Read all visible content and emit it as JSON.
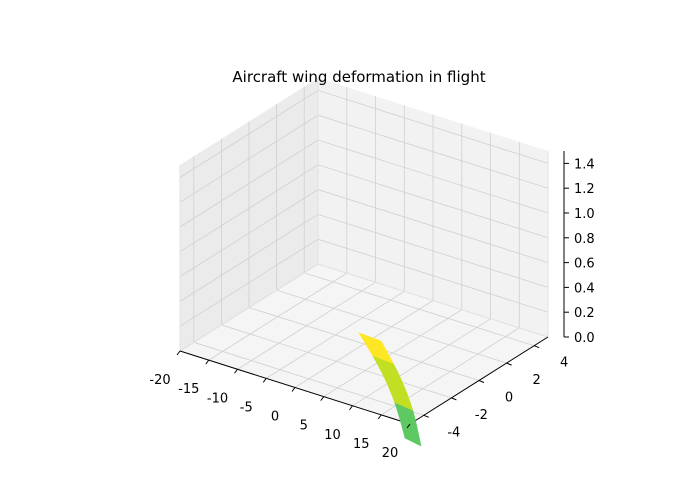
{
  "chart_data": {
    "type": "surface3d",
    "title": "Aircraft wing deformation in flight",
    "xlabel": "",
    "ylabel": "",
    "zlabel": "",
    "xlim": [
      -20,
      20
    ],
    "ylim": [
      -5,
      5
    ],
    "zlim": [
      0,
      1.5
    ],
    "x_ticks": [
      "-20",
      "-15",
      "-10",
      "-5",
      "0",
      "5",
      "10",
      "15",
      "20"
    ],
    "y_ticks": [
      "-4",
      "-2",
      "0",
      "2",
      "4"
    ],
    "z_ticks": [
      "0.0",
      "0.2",
      "0.4",
      "0.6",
      "0.8",
      "1.0",
      "1.2",
      "1.4"
    ],
    "grid": true,
    "wing_surface": {
      "x_span": [
        11,
        20
      ],
      "y_span": [
        -5,
        5
      ],
      "colormap": "viridis",
      "segments": [
        {
          "x0": 11,
          "x1": 13,
          "color": "#fde725"
        },
        {
          "x0": 13,
          "x1": 17,
          "color": "#c2df23"
        },
        {
          "x0": 17,
          "x1": 20,
          "color": "#5ec962"
        }
      ]
    },
    "pane_color": "#f2f2f2",
    "grid_color": "#d0d0d0"
  }
}
